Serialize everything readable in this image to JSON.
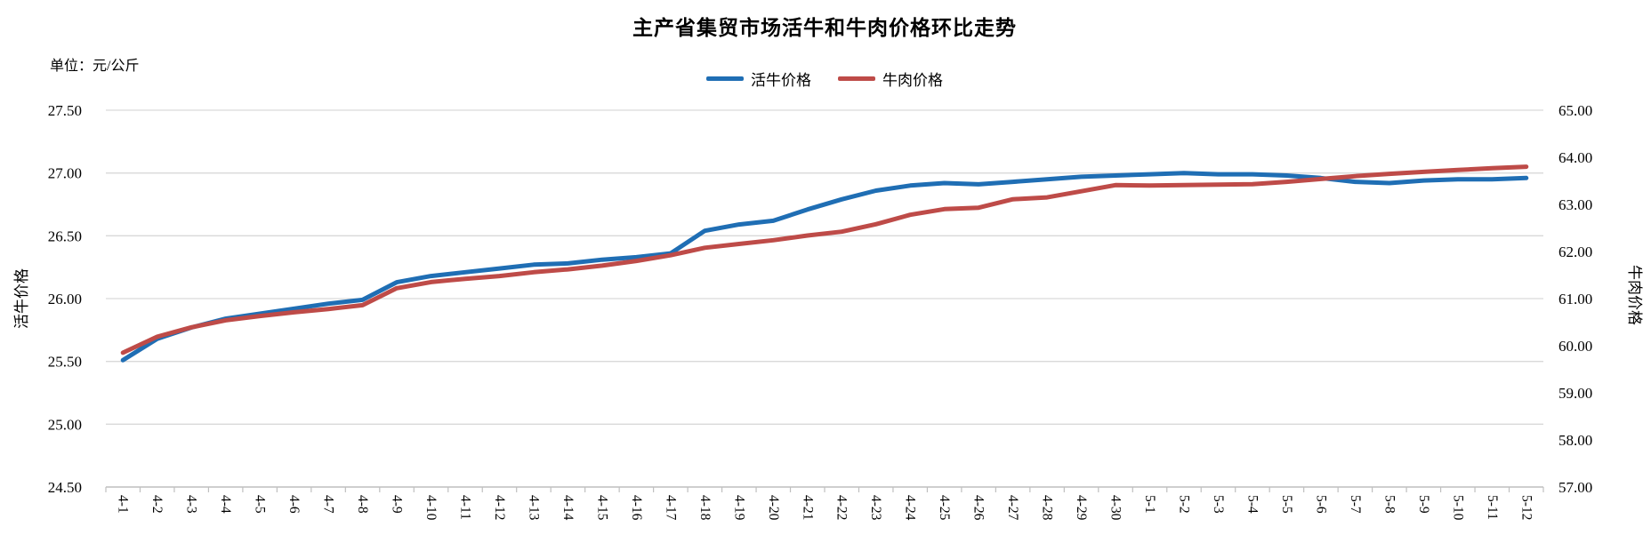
{
  "chart": {
    "title": "主产省集贸市场活牛和牛肉价格环比走势",
    "unit_label": "单位：元/公斤",
    "legend": [
      {
        "label": "活牛价格",
        "color": "#1f6eb4"
      },
      {
        "label": "牛肉价格",
        "color": "#be4b48"
      }
    ],
    "left_axis_title": "活牛价格",
    "right_axis_title": "牛肉价格",
    "left_tick_labels": [
      "27.50",
      "27.00",
      "26.50",
      "26.00",
      "25.50",
      "25.00",
      "24.50"
    ],
    "right_tick_labels": [
      "65.00",
      "64.00",
      "63.00",
      "62.00",
      "61.00",
      "60.00",
      "59.00",
      "58.00",
      "57.00"
    ],
    "colors": {
      "gridline": "#d9d9d9",
      "axis_line": "#bfbfbf",
      "live_cattle_blue": "#1f6eb4",
      "beef_red": "#be4b48"
    }
  },
  "chart_data": {
    "type": "line",
    "title": "主产省集贸市场活牛和牛肉价格环比走势",
    "unit": "元/公斤",
    "grid": true,
    "legend_position": "top",
    "categories": [
      "4-1",
      "4-2",
      "4-3",
      "4-4",
      "4-5",
      "4-6",
      "4-7",
      "4-8",
      "4-9",
      "4-10",
      "4-11",
      "4-12",
      "4-13",
      "4-14",
      "4-15",
      "4-16",
      "4-17",
      "4-18",
      "4-19",
      "4-20",
      "4-21",
      "4-22",
      "4-23",
      "4-24",
      "4-25",
      "4-26",
      "4-27",
      "4-28",
      "4-29",
      "4-30",
      "5-1",
      "5-2",
      "5-3",
      "5-4",
      "5-5",
      "5-6",
      "5-7",
      "5-8",
      "5-9",
      "5-10",
      "5-11",
      "5-12"
    ],
    "left_ylabel": "活牛价格",
    "right_ylabel": "牛肉价格",
    "left_ylim": [
      24.5,
      27.5
    ],
    "right_ylim": [
      57.0,
      65.0
    ],
    "left_ytick_step": 0.5,
    "right_ytick_step": 1.0,
    "series": [
      {
        "name": "活牛价格",
        "axis": "left",
        "color": "#1f6eb4",
        "values": [
          25.51,
          25.68,
          25.77,
          25.84,
          25.88,
          25.92,
          25.96,
          25.99,
          26.13,
          26.18,
          26.21,
          26.24,
          26.27,
          26.28,
          26.31,
          26.33,
          26.36,
          26.54,
          26.59,
          26.62,
          26.71,
          26.79,
          26.86,
          26.9,
          26.92,
          26.91,
          26.93,
          26.95,
          26.97,
          26.98,
          26.99,
          27.0,
          26.99,
          26.99,
          26.98,
          26.96,
          26.93,
          26.92,
          26.94,
          26.95,
          26.95,
          26.96
        ]
      },
      {
        "name": "牛肉价格",
        "axis": "right",
        "color": "#be4b48",
        "values": [
          59.85,
          60.19,
          60.39,
          60.54,
          60.63,
          60.71,
          60.78,
          60.86,
          61.22,
          61.35,
          61.42,
          61.48,
          61.56,
          61.62,
          61.7,
          61.8,
          61.92,
          62.08,
          62.16,
          62.24,
          62.34,
          62.42,
          62.58,
          62.78,
          62.9,
          62.93,
          63.11,
          63.15,
          63.28,
          63.41,
          63.4,
          63.41,
          63.42,
          63.43,
          63.48,
          63.54,
          63.6,
          63.65,
          63.69,
          63.73,
          63.77,
          63.8
        ]
      }
    ]
  }
}
